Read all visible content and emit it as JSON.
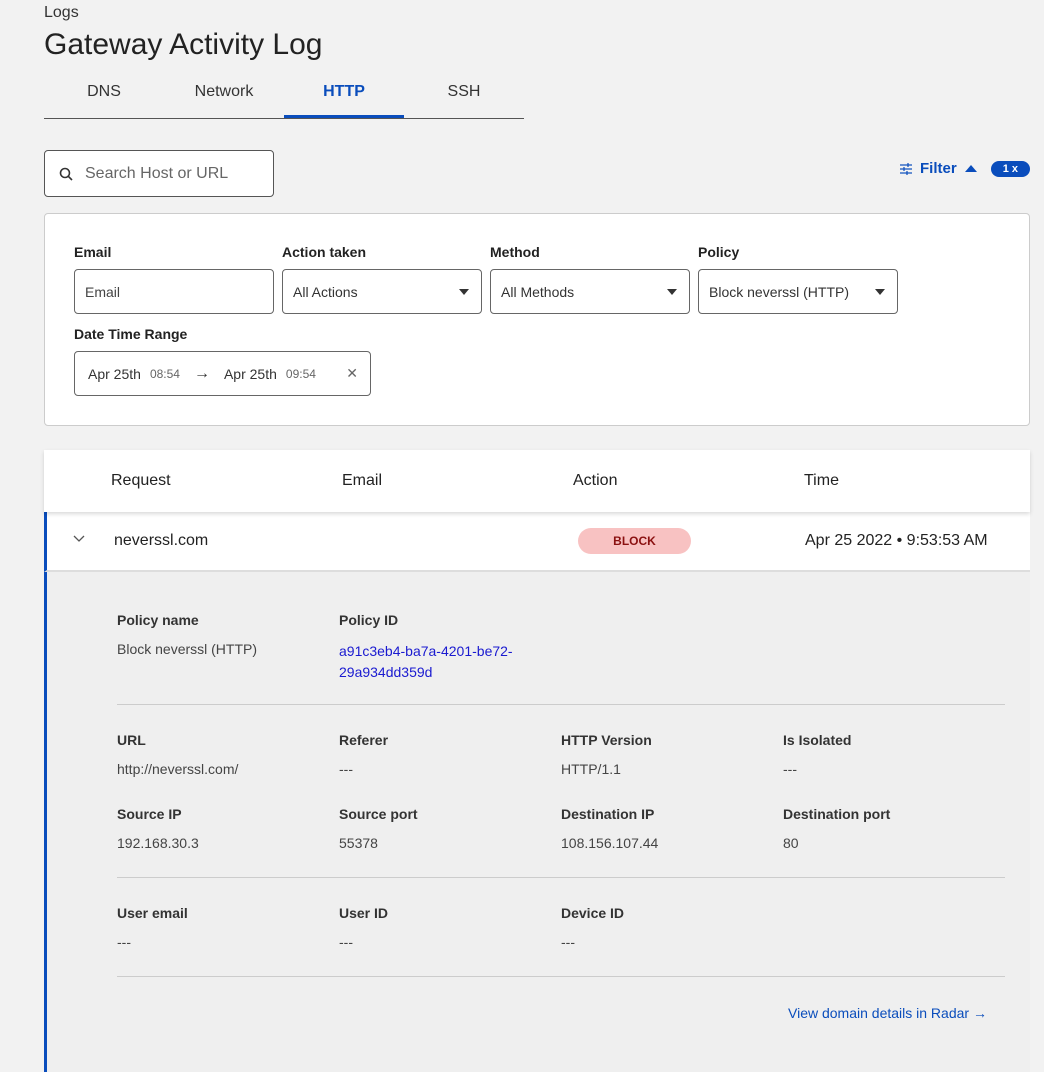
{
  "breadcrumb": "Logs",
  "title": "Gateway Activity Log",
  "tabs": [
    {
      "label": "DNS"
    },
    {
      "label": "Network"
    },
    {
      "label": "HTTP",
      "active": true
    },
    {
      "label": "SSH"
    }
  ],
  "search": {
    "placeholder": "Search Host or URL",
    "value": ""
  },
  "filter": {
    "label": "Filter",
    "count": "1 x"
  },
  "filters": {
    "email": {
      "label": "Email",
      "placeholder": "Email"
    },
    "action": {
      "label": "Action taken",
      "value": "All Actions"
    },
    "method": {
      "label": "Method",
      "value": "All Methods"
    },
    "policy": {
      "label": "Policy",
      "value": "Block neverssl (HTTP)"
    },
    "range": {
      "label": "Date Time Range",
      "from_date": "Apr 25th",
      "from_time": "08:54",
      "to_date": "Apr 25th",
      "to_time": "09:54"
    }
  },
  "table": {
    "columns": [
      "Request",
      "Email",
      "Action",
      "Time"
    ],
    "row": {
      "request": "neverssl.com",
      "email": "",
      "action": "BLOCK",
      "time": "Apr 25 2022 • 9:53:53 AM"
    },
    "detail": {
      "policy_name_label": "Policy name",
      "policy_name": "Block neverssl (HTTP)",
      "policy_id_label": "Policy ID",
      "policy_id_1": "a91c3eb4-ba7a-4201-be72-",
      "policy_id_2": "29a934dd359d",
      "fields": [
        {
          "label": "URL",
          "value": "http://neverssl.com/"
        },
        {
          "label": "Referer",
          "value": "---"
        },
        {
          "label": "HTTP Version",
          "value": "HTTP/1.1"
        },
        {
          "label": "Is Isolated",
          "value": "---"
        },
        {
          "label": "Source IP",
          "value": "192.168.30.3"
        },
        {
          "label": "Source port",
          "value": "55378"
        },
        {
          "label": "Destination IP",
          "value": "108.156.107.44"
        },
        {
          "label": "Destination port",
          "value": "80"
        },
        {
          "label": "User email",
          "value": "---"
        },
        {
          "label": "User ID",
          "value": "---"
        },
        {
          "label": "Device ID",
          "value": "---"
        }
      ],
      "radar_link": "View domain details in Radar →"
    }
  },
  "colors": {
    "accent": "#0a4dbc",
    "block_bg": "#f8c2c2",
    "block_text": "#8a1010"
  }
}
